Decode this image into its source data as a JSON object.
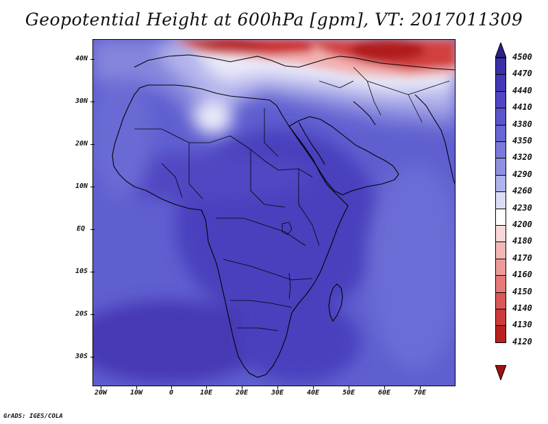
{
  "title": "Geopotential Height at 600hPa [gpm], VT: 2017011309",
  "credit": "GrADS: IGES/COLA",
  "lat_labels": [
    "40N",
    "30N",
    "20N",
    "10N",
    "EQ",
    "10S",
    "20S",
    "30S"
  ],
  "lon_labels": [
    "20W",
    "10W",
    "0",
    "10E",
    "20E",
    "30E",
    "40E",
    "50E",
    "60E",
    "70E"
  ],
  "colorbar": {
    "levels": [
      "4500",
      "4470",
      "4440",
      "4410",
      "4380",
      "4350",
      "4320",
      "4290",
      "4260",
      "4230",
      "4200",
      "4180",
      "4170",
      "4160",
      "4150",
      "4140",
      "4130",
      "4120"
    ],
    "colors": [
      "#2e1f8a",
      "#3a2fa6",
      "#4536b8",
      "#5046c4",
      "#5b55cc",
      "#6866d2",
      "#7a7adb",
      "#9090e2",
      "#b0b2ec",
      "#dcdcf6",
      "#ffffff",
      "#f8d8d8",
      "#f2b8b8",
      "#ec9a9a",
      "#e47a7a",
      "#d95858",
      "#cc3a3a",
      "#b82020",
      "#a01010"
    ],
    "top_arrow_color": "#2e1f8a",
    "bottom_arrow_color": "#a01010"
  },
  "map": {
    "projection": "latlon",
    "lon_range": [
      -22,
      80
    ],
    "lat_range": [
      -37,
      45
    ],
    "field": "Geopotential Height at 600hPa",
    "units": "gpm",
    "valid_time": "2017011309",
    "background_color": "#5f5fd0"
  }
}
